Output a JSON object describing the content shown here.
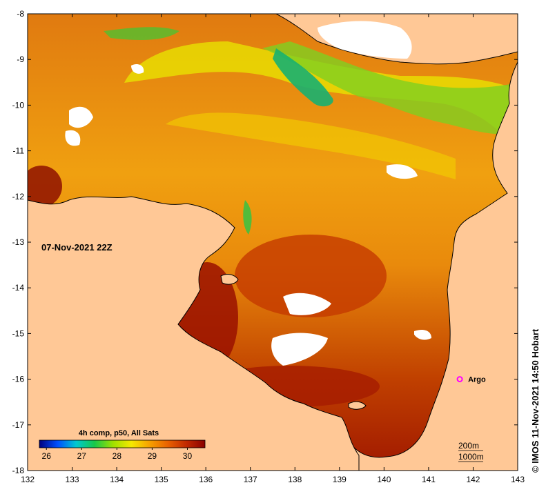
{
  "map": {
    "lon_ticks": [
      "132",
      "133",
      "134",
      "135",
      "136",
      "137",
      "138",
      "139",
      "140",
      "141",
      "142",
      "143"
    ],
    "lat_ticks": [
      "-8",
      "-9",
      "-10",
      "-11",
      "-12",
      "-13",
      "-14",
      "-15",
      "-16",
      "-17",
      "-18"
    ],
    "lon_range": [
      132,
      143
    ],
    "lat_range": [
      -18,
      -8
    ],
    "timestamp": "07-Nov-2021 22Z",
    "colorbar": {
      "title": "4h comp, p50, All Sats",
      "ticks": [
        "26",
        "27",
        "28",
        "29",
        "30"
      ],
      "range": [
        25.8,
        30.5
      ],
      "colors": [
        "#00007f",
        "#0050ff",
        "#00c8d0",
        "#18c84a",
        "#9ee000",
        "#f5e800",
        "#f6a000",
        "#e86000",
        "#c02800",
        "#8a0000"
      ]
    },
    "argo": {
      "label": "Argo",
      "lon": 141.7,
      "lat": -16.0,
      "color": "#ff00ff"
    },
    "contours": [
      "200m",
      "1000m"
    ],
    "credit": "© IMOS 11-Nov-2021 14:50 Hobart",
    "land_color": "#ffc896",
    "cloud_color": "#ffffff"
  }
}
